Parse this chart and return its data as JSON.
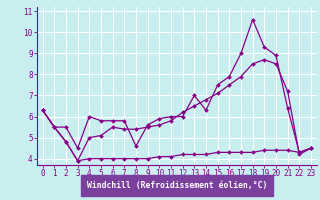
{
  "xlabel": "Windchill (Refroidissement éolien,°C)",
  "background_color": "#c8eef0",
  "xlabel_bg_color": "#7b3f9e",
  "grid_color": "#aaddee",
  "line_color": "#880088",
  "xlim": [
    -0.5,
    23.5
  ],
  "ylim": [
    3.7,
    11.2
  ],
  "yticks": [
    4,
    5,
    6,
    7,
    8,
    9,
    10,
    11
  ],
  "xticks": [
    0,
    1,
    2,
    3,
    4,
    5,
    6,
    7,
    8,
    9,
    10,
    11,
    12,
    13,
    14,
    15,
    16,
    17,
    18,
    19,
    20,
    21,
    22,
    23
  ],
  "series": [
    {
      "x": [
        0,
        1,
        2,
        3,
        4,
        5,
        6,
        7,
        8,
        9,
        10,
        11,
        12,
        13,
        14,
        15,
        16,
        17,
        18,
        19,
        20,
        21,
        22,
        23
      ],
      "y": [
        6.3,
        5.5,
        5.5,
        4.5,
        6.0,
        5.8,
        5.8,
        5.8,
        4.6,
        5.6,
        5.9,
        6.0,
        6.0,
        7.0,
        6.3,
        7.5,
        7.9,
        9.0,
        10.6,
        9.3,
        8.9,
        6.4,
        4.3,
        4.5
      ]
    },
    {
      "x": [
        0,
        1,
        2,
        3,
        4,
        5,
        6,
        7,
        8,
        9,
        10,
        11,
        12,
        13,
        14,
        15,
        16,
        17,
        18,
        19,
        20,
        21,
        22,
        23
      ],
      "y": [
        6.3,
        5.5,
        4.8,
        3.9,
        5.0,
        5.1,
        5.5,
        5.4,
        5.4,
        5.5,
        5.6,
        5.8,
        6.2,
        6.5,
        6.8,
        7.1,
        7.5,
        7.9,
        8.5,
        8.7,
        8.5,
        7.2,
        4.2,
        4.5
      ]
    },
    {
      "x": [
        0,
        1,
        2,
        3,
        4,
        5,
        6,
        7,
        8,
        9,
        10,
        11,
        12,
        13,
        14,
        15,
        16,
        17,
        18,
        19,
        20,
        21,
        22,
        23
      ],
      "y": [
        6.3,
        5.5,
        4.8,
        3.9,
        4.0,
        4.0,
        4.0,
        4.0,
        4.0,
        4.0,
        4.1,
        4.1,
        4.2,
        4.2,
        4.2,
        4.3,
        4.3,
        4.3,
        4.3,
        4.4,
        4.4,
        4.4,
        4.3,
        4.5
      ]
    }
  ]
}
